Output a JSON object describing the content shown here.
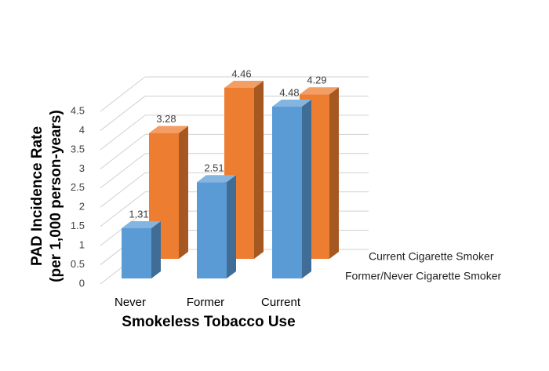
{
  "chart_data": {
    "type": "bar3d",
    "y_label": [
      "PAD Incidence Rate",
      "(per 1,000 person-years)"
    ],
    "x_label": "Smokeless Tobacco Use",
    "categories": [
      "Never",
      "Former",
      "Current"
    ],
    "series": [
      {
        "name": "Former/Never Cigarette Smoker",
        "color": "#5b9bd5",
        "values": [
          1.31,
          2.51,
          4.48
        ]
      },
      {
        "name": "Current Cigarette Smoker",
        "color": "#ed7d31",
        "values": [
          3.28,
          4.46,
          4.29
        ]
      }
    ],
    "ylim": [
      0,
      4.5
    ],
    "yticks": [
      0,
      0.5,
      1,
      1.5,
      2,
      2.5,
      3,
      3.5,
      4,
      4.5
    ],
    "grid": true
  }
}
